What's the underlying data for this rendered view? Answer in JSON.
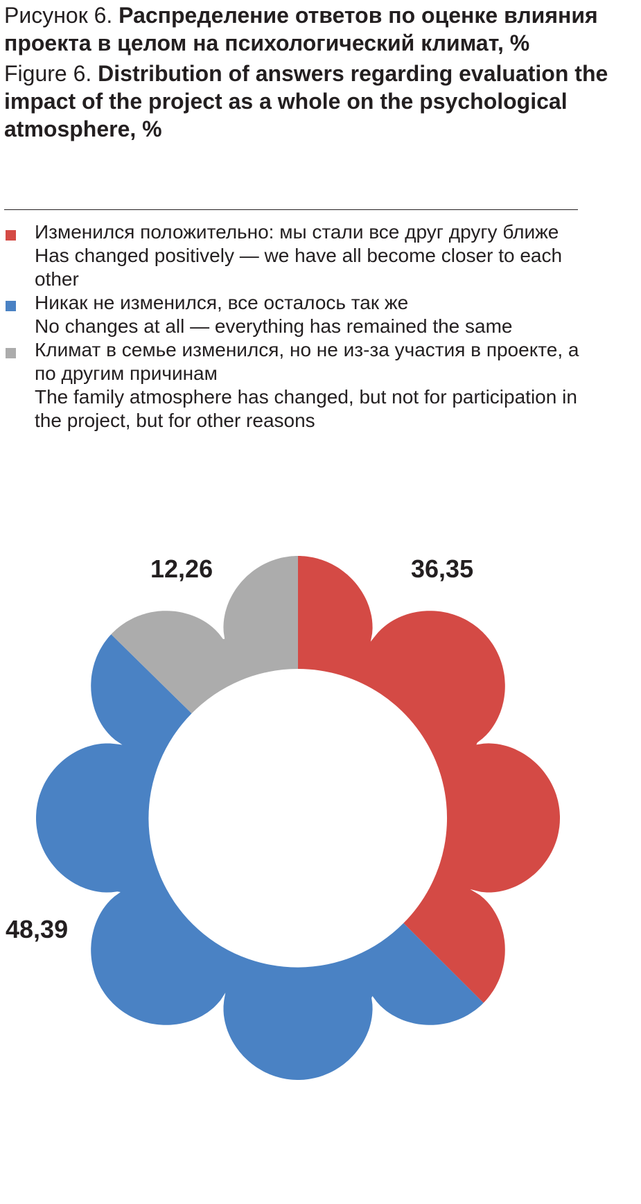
{
  "title": {
    "ru_prefix": "Рисунок 6. ",
    "ru_bold": "Распределение ответов по оценке влияния проекта в целом на психологический климат, %",
    "en_prefix": "Figure 6. ",
    "en_bold": "Distribution of answers regarding evaluation the impact of the project as a whole on the psychological atmosphere, %"
  },
  "legend": [
    {
      "ru": "Изменился положительно: мы стали все друг другу ближе",
      "en": "Has changed positively — we have all become closer to each other",
      "color": "#d44a45"
    },
    {
      "ru": "Никак не изменился, все осталось так же",
      "en": "No changes at all — everything has remained the same",
      "color": "#4a82c4"
    },
    {
      "ru": "Климат в семье изменился, но не из-за участия в проекте, а по другим причинам",
      "en": "The family atmosphere has changed, but not for participation in the project, but for other reasons",
      "color": "#acacac"
    }
  ],
  "chart_data": {
    "type": "pie",
    "style": "flower-donut",
    "start": "top",
    "direction": "clockwise",
    "categories": [
      "Has changed positively",
      "No changes at all",
      "Changed for other reasons"
    ],
    "values": [
      36.35,
      48.39,
      12.26
    ],
    "labels": [
      "36,35",
      "48,39",
      "12,26"
    ],
    "colors": [
      "#d44a45",
      "#4a82c4",
      "#acacac"
    ]
  }
}
